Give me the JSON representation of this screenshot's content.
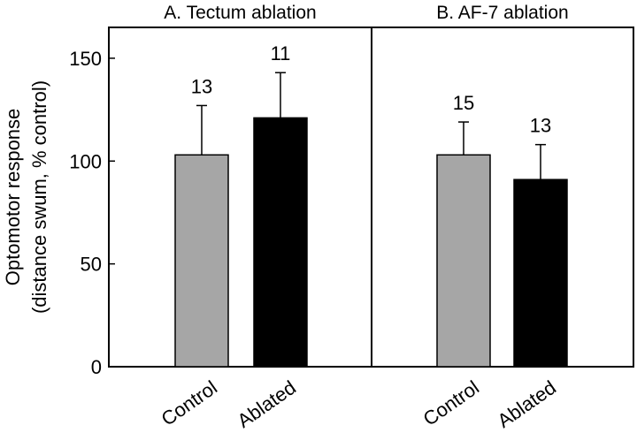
{
  "chart_data": {
    "type": "bar",
    "ylabel_lines": [
      "Optomotor response",
      "(distance swum, % control)"
    ],
    "ylim": [
      0,
      165
    ],
    "yticks": [
      0,
      50,
      100,
      150
    ],
    "ytick_labels": [
      "0",
      "50",
      "100",
      "150"
    ],
    "grid": false,
    "legend": "none",
    "panels": [
      {
        "title": "A. Tectum ablation",
        "categories": [
          "Control",
          "Ablated"
        ],
        "values": [
          103,
          121
        ],
        "error_plus": [
          24,
          22
        ],
        "n": [
          "13",
          "11"
        ],
        "colors": [
          "#a6a6a6",
          "#000000"
        ]
      },
      {
        "title": "B. AF-7 ablation",
        "categories": [
          "Control",
          "Ablated"
        ],
        "values": [
          103,
          91
        ],
        "error_plus": [
          16,
          17
        ],
        "n": [
          "15",
          "13"
        ],
        "colors": [
          "#a6a6a6",
          "#000000"
        ]
      }
    ]
  }
}
